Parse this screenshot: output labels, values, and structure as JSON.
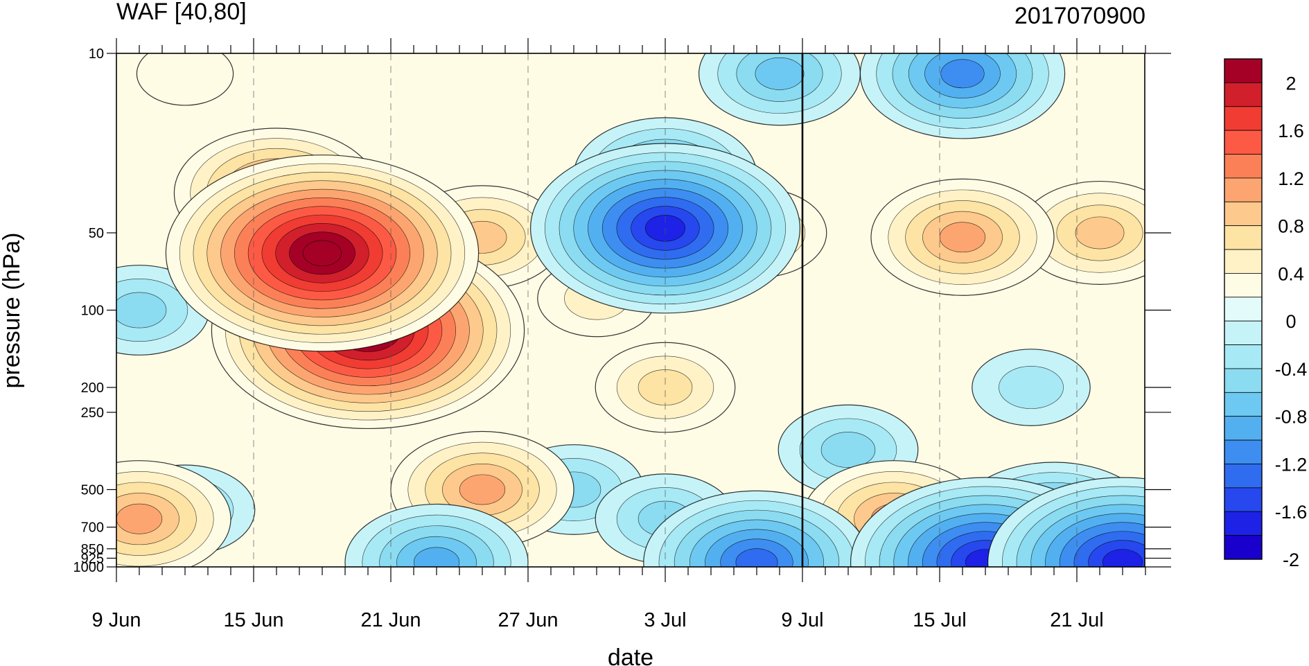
{
  "chart_data": {
    "type": "heatmap",
    "subtype": "filled-contour",
    "title": "WAF [40,80]",
    "right_title": "2017070900",
    "xlabel": "date",
    "ylabel": "pressure (hPa)",
    "y_scale": "log",
    "y_reversed": true,
    "x_start": "2017-06-09",
    "x_end": "2017-07-24",
    "x_tick_labels": [
      "9 Jun",
      "15 Jun",
      "21 Jun",
      "27 Jun",
      "3 Jul",
      "9 Jul",
      "15 Jul",
      "21 Jul"
    ],
    "y_tick_labels": [
      "10",
      "50",
      "100",
      "200",
      "250",
      "500",
      "700",
      "850",
      "925",
      "1000"
    ],
    "marker_date_label": "9 Jul",
    "colorbar_labels": [
      "2",
      "1.6",
      "1.2",
      "0.8",
      "0.4",
      "0",
      "-0.4",
      "-0.8",
      "-1.2",
      "-1.6",
      "-2"
    ],
    "colorbar_colors": [
      "#a50026",
      "#d11f2c",
      "#f03c32",
      "#fd5a45",
      "#fc8057",
      "#fda570",
      "#fdc98c",
      "#fde3a4",
      "#fff2c7",
      "#fffce6",
      "#e4fbfc",
      "#c6f3f8",
      "#a7e9f4",
      "#8bdbf1",
      "#6dc9f1",
      "#53b0f0",
      "#3d8ef0",
      "#2f6cef",
      "#2648ee",
      "#1d22e6",
      "#1a00cc"
    ],
    "colorbar_range": [
      -2.2,
      2.2
    ],
    "contour_interval": 0.2,
    "features": [
      {
        "date": "2017-06-18",
        "pressure": 60,
        "value": 2.3
      },
      {
        "date": "2017-06-20",
        "pressure": 120,
        "value": 2.1
      },
      {
        "date": "2017-06-16",
        "pressure": 35,
        "value": 1.2
      },
      {
        "date": "2017-06-12",
        "pressure": 12,
        "value": 0.3
      },
      {
        "date": "2017-06-10",
        "pressure": 650,
        "value": 0.9
      },
      {
        "date": "2017-06-25",
        "pressure": 500,
        "value": 0.9
      },
      {
        "date": "2017-06-25",
        "pressure": 52,
        "value": 0.85
      },
      {
        "date": "2017-06-30",
        "pressure": 90,
        "value": 0.4
      },
      {
        "date": "2017-07-03",
        "pressure": 200,
        "value": 0.5
      },
      {
        "date": "2017-07-07",
        "pressure": 50,
        "value": 0.5
      },
      {
        "date": "2017-07-13",
        "pressure": 650,
        "value": 0.9
      },
      {
        "date": "2017-07-16",
        "pressure": 52,
        "value": 1.0
      },
      {
        "date": "2017-07-22",
        "pressure": 50,
        "value": 0.8
      },
      {
        "date": "2017-07-03",
        "pressure": 48,
        "value": -1.7
      },
      {
        "date": "2017-07-03",
        "pressure": 30,
        "value": -1.0
      },
      {
        "date": "2017-06-22",
        "pressure": 110,
        "value": -0.9
      },
      {
        "date": "2017-06-10",
        "pressure": 100,
        "value": -0.6
      },
      {
        "date": "2017-06-12",
        "pressure": 600,
        "value": -0.7
      },
      {
        "date": "2017-06-29",
        "pressure": 500,
        "value": -0.6
      },
      {
        "date": "2017-07-03",
        "pressure": 650,
        "value": -0.6
      },
      {
        "date": "2017-07-07",
        "pressure": 960,
        "value": -1.3
      },
      {
        "date": "2017-07-11",
        "pressure": 350,
        "value": -0.6
      },
      {
        "date": "2017-07-16",
        "pressure": 12,
        "value": -1.2
      },
      {
        "date": "2017-07-17",
        "pressure": 960,
        "value": -1.8
      },
      {
        "date": "2017-07-23",
        "pressure": 960,
        "value": -1.9
      },
      {
        "date": "2017-07-20",
        "pressure": 700,
        "value": -1.1
      },
      {
        "date": "2017-06-23",
        "pressure": 960,
        "value": -1.0
      },
      {
        "date": "2017-07-08",
        "pressure": 12,
        "value": -0.8
      },
      {
        "date": "2017-07-19",
        "pressure": 200,
        "value": -0.4
      }
    ]
  }
}
